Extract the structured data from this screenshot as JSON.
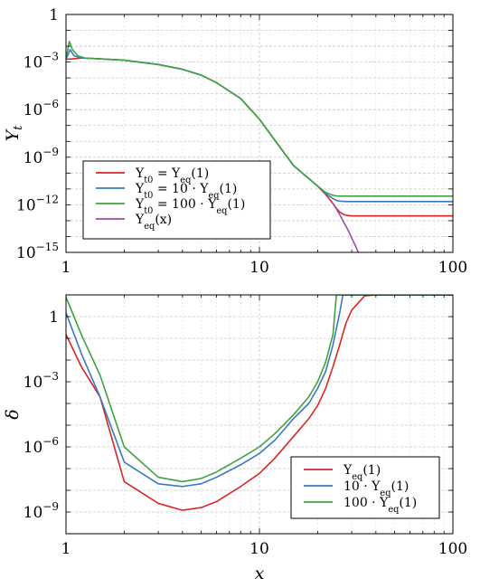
{
  "chart_data": [
    {
      "type": "line",
      "xscale": "log",
      "yscale": "log",
      "xlim": [
        1,
        100
      ],
      "ylim": [
        1e-15,
        1
      ],
      "xlabel": "",
      "ylabel": "Y",
      "ylabel_sub": "t",
      "grid": true,
      "legend_position": "bottom-left",
      "x_ticks": [
        {
          "value": 1,
          "label": "1"
        },
        {
          "value": 10,
          "label": "10"
        },
        {
          "value": 100,
          "label": "100"
        }
      ],
      "y_ticks": [
        {
          "value": 1,
          "base": "1",
          "exp": ""
        },
        {
          "value": 0.001,
          "base": "10",
          "exp": "−3"
        },
        {
          "value": 1e-06,
          "base": "10",
          "exp": "−6"
        },
        {
          "value": 1e-09,
          "base": "10",
          "exp": "−9"
        },
        {
          "value": 1e-12,
          "base": "10",
          "exp": "−12"
        },
        {
          "value": 1e-15,
          "base": "10",
          "exp": "−15"
        }
      ],
      "series": [
        {
          "label": [
            {
              "t": "Y"
            },
            {
              "t": "t0",
              "sub": true
            },
            {
              "t": " = Y"
            },
            {
              "t": "eq",
              "sub": true
            },
            {
              "t": "(1)"
            }
          ],
          "color": "#d62728",
          "x": [
            1,
            1.08,
            1.2,
            1.5,
            2,
            3,
            4,
            5,
            6,
            8,
            10,
            12,
            15,
            20,
            22,
            24,
            25,
            26,
            27,
            28,
            30,
            35,
            40,
            50,
            70,
            100
          ],
          "y": [
            0.0015,
            0.0016,
            0.0018,
            0.0016,
            0.0013,
            0.0007,
            0.00035,
            0.00015,
            5e-05,
            5e-06,
            2.5e-07,
            1.2e-08,
            3e-10,
            1.5e-11,
            4.5e-12,
            1.2e-12,
            6e-13,
            3.5e-13,
            2.6e-13,
            2.2e-13,
            2e-13,
            2e-13,
            2e-13,
            2e-13,
            2e-13,
            2e-13
          ]
        },
        {
          "label": [
            {
              "t": "Y"
            },
            {
              "t": "t0",
              "sub": true
            },
            {
              "t": " = 10 · Y"
            },
            {
              "t": "eq",
              "sub": true
            },
            {
              "t": "(1)"
            }
          ],
          "color": "#3a78c2",
          "x": [
            1,
            1.05,
            1.1,
            1.2,
            1.5,
            2,
            3,
            4,
            5,
            6,
            8,
            10,
            12,
            15,
            20,
            22,
            24,
            25,
            26,
            28,
            30,
            40,
            50,
            70,
            100
          ],
          "y": [
            0.0015,
            0.006,
            0.0025,
            0.0018,
            0.0016,
            0.0013,
            0.0007,
            0.00035,
            0.00015,
            5e-05,
            5e-06,
            2.5e-07,
            1.2e-08,
            3e-10,
            1.5e-11,
            5e-12,
            2.5e-12,
            1.9e-12,
            1.7e-12,
            1.6e-12,
            1.6e-12,
            1.6e-12,
            1.6e-12,
            1.6e-12,
            1.6e-12
          ]
        },
        {
          "label": [
            {
              "t": "Y"
            },
            {
              "t": "t0",
              "sub": true
            },
            {
              "t": " = 100 · Y"
            },
            {
              "t": "eq",
              "sub": true
            },
            {
              "t": "(1)"
            }
          ],
          "color": "#3fa33f",
          "x": [
            1,
            1.04,
            1.08,
            1.15,
            1.25,
            1.5,
            2,
            3,
            4,
            5,
            6,
            8,
            10,
            12,
            15,
            20,
            22,
            24,
            25,
            26,
            28,
            30,
            40,
            50,
            70,
            100
          ],
          "y": [
            0.0015,
            0.02,
            0.006,
            0.0025,
            0.0018,
            0.0016,
            0.0013,
            0.0007,
            0.00035,
            0.00015,
            5e-05,
            5e-06,
            2.5e-07,
            1.2e-08,
            3e-10,
            1.5e-11,
            6e-12,
            4e-12,
            3.6e-12,
            3.5e-12,
            3.5e-12,
            3.5e-12,
            3.5e-12,
            3.5e-12,
            3.5e-12,
            3.5e-12
          ]
        },
        {
          "label": [
            {
              "t": "Y"
            },
            {
              "t": "eq",
              "sub": true
            },
            {
              "t": "(x)"
            }
          ],
          "color": "#9b4dab",
          "x": [
            24,
            25,
            26,
            27,
            28,
            29,
            30,
            31,
            32,
            33
          ],
          "y": [
            1.2e-12,
            5.5e-13,
            2.4e-13,
            1e-13,
            4.5e-14,
            2e-14,
            8e-15,
            3.5e-15,
            1.5e-15,
            6e-16
          ]
        }
      ]
    },
    {
      "type": "line",
      "xscale": "log",
      "yscale": "log",
      "xlim": [
        1,
        100
      ],
      "ylim": [
        1e-10,
        10
      ],
      "xlabel": "x",
      "ylabel": "δ",
      "grid": true,
      "legend_position": "bottom-right",
      "x_ticks": [
        {
          "value": 1,
          "label": "1"
        },
        {
          "value": 10,
          "label": "10"
        },
        {
          "value": 100,
          "label": "100"
        }
      ],
      "y_ticks": [
        {
          "value": 1,
          "base": "1",
          "exp": ""
        },
        {
          "value": 0.001,
          "base": "10",
          "exp": "−3"
        },
        {
          "value": 1e-06,
          "base": "10",
          "exp": "−6"
        },
        {
          "value": 1e-09,
          "base": "10",
          "exp": "−9"
        }
      ],
      "series": [
        {
          "label": [
            {
              "t": "Y"
            },
            {
              "t": "eq",
              "sub": true
            },
            {
              "t": "(1)"
            }
          ],
          "color": "#d62728",
          "x": [
            1,
            1.2,
            1.5,
            2,
            3,
            4,
            5,
            6,
            8,
            10,
            12,
            15,
            18,
            20,
            22,
            24,
            26,
            28,
            30,
            35,
            40,
            50,
            70,
            100
          ],
          "y": [
            0.15,
            0.005,
            0.0002,
            2.5e-08,
            2.5e-09,
            1.2e-09,
            1.6e-09,
            3e-09,
            1.5e-08,
            6e-08,
            3e-07,
            3e-06,
            2e-05,
            8e-05,
            0.0005,
            0.005,
            0.05,
            0.5,
            2,
            9,
            10,
            10,
            10,
            10
          ]
        },
        {
          "label": [
            {
              "t": "10 · Y"
            },
            {
              "t": "eq",
              "sub": true
            },
            {
              "t": "(1)"
            }
          ],
          "color": "#3a78c2",
          "x": [
            1,
            1.2,
            1.5,
            2,
            3,
            4,
            5,
            6,
            8,
            10,
            12,
            15,
            18,
            20,
            22,
            24,
            26,
            27,
            30,
            40,
            50,
            70,
            100
          ],
          "y": [
            1.5,
            0.02,
            0.0002,
            2e-07,
            2e-08,
            1.5e-08,
            2e-08,
            4e-08,
            1.5e-07,
            5e-07,
            2e-06,
            2e-05,
            0.0001,
            0.0005,
            0.003,
            0.05,
            1.5,
            10,
            10,
            10,
            10,
            10,
            10
          ]
        },
        {
          "label": [
            {
              "t": "100 · Y"
            },
            {
              "t": "eq",
              "sub": true
            },
            {
              "t": "(1)"
            }
          ],
          "color": "#3fa33f",
          "x": [
            1,
            1.2,
            1.5,
            2,
            3,
            4,
            5,
            6,
            8,
            10,
            12,
            15,
            18,
            20,
            22,
            24,
            25,
            30,
            40,
            50,
            70,
            100
          ],
          "y": [
            8,
            0.15,
            0.002,
            1e-06,
            4e-08,
            2.5e-08,
            3.5e-08,
            7e-08,
            3e-07,
            1e-06,
            4e-06,
            3e-05,
            0.0002,
            0.001,
            0.008,
            0.15,
            10,
            10,
            10,
            10,
            10,
            10
          ]
        }
      ]
    }
  ]
}
